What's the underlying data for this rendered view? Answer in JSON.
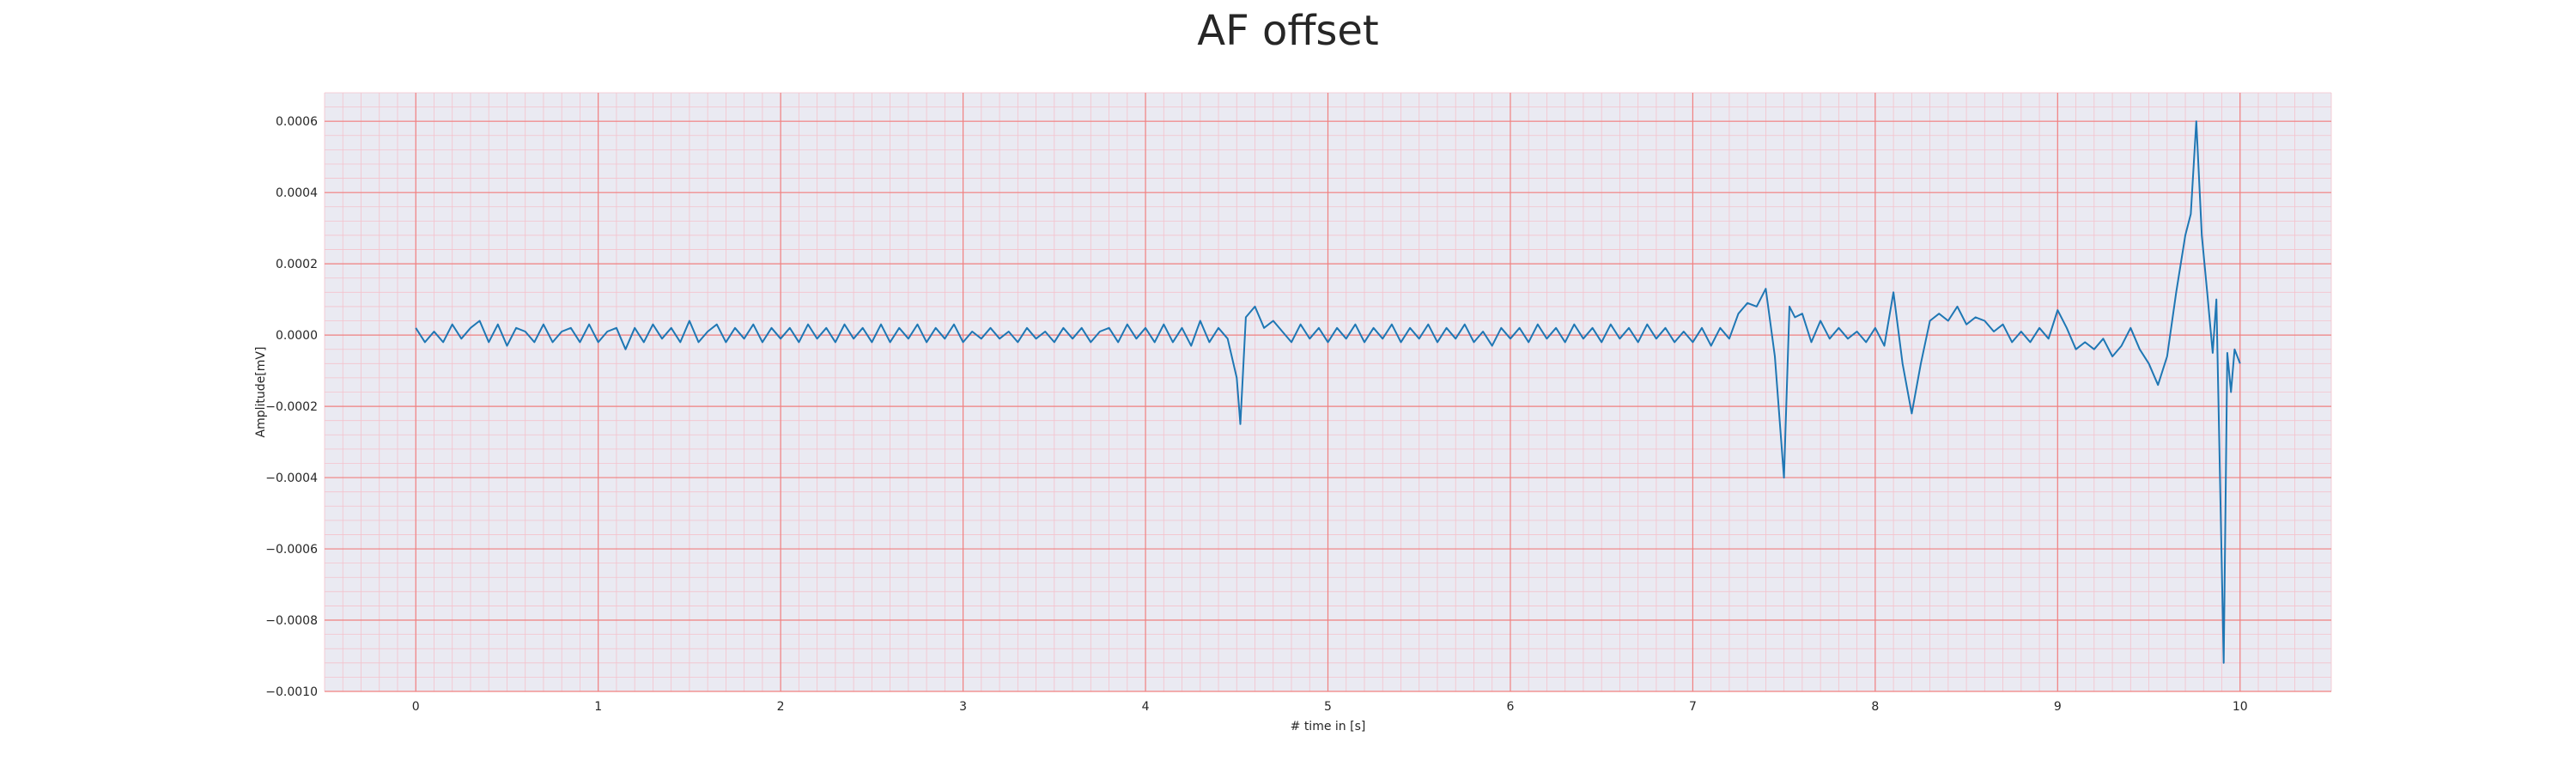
{
  "chart_data": {
    "type": "line",
    "title": "AF offset",
    "xlabel": "# time in [s]",
    "ylabel": "Amplitude[mV]",
    "xlim": [
      -0.5,
      10.5
    ],
    "ylim": [
      -0.001,
      0.00068
    ],
    "xticks": [
      0,
      1,
      2,
      3,
      4,
      5,
      6,
      7,
      8,
      9,
      10
    ],
    "xtick_labels": [
      "0",
      "1",
      "2",
      "3",
      "4",
      "5",
      "6",
      "7",
      "8",
      "9",
      "10"
    ],
    "yticks": [
      -0.001,
      -0.0008,
      -0.0006,
      -0.0004,
      -0.0002,
      0.0,
      0.0002,
      0.0004,
      0.0006
    ],
    "ytick_labels": [
      "−0.0010",
      "−0.0008",
      "−0.0006",
      "−0.0004",
      "−0.0002",
      "0.0000",
      "0.0002",
      "0.0004",
      "0.0006"
    ],
    "grid": true,
    "colors": {
      "background": "#eaeaf2",
      "major_grid": "#f08080",
      "minor_grid": "#f4c2cc",
      "line": "#1f77b4"
    },
    "series": [
      {
        "x": [
          0.0,
          0.05,
          0.1,
          0.15,
          0.2,
          0.25,
          0.3,
          0.35,
          0.4,
          0.45,
          0.5,
          0.55,
          0.6,
          0.65,
          0.7,
          0.75,
          0.8,
          0.85,
          0.9,
          0.95,
          1.0,
          1.05,
          1.1,
          1.15,
          1.2,
          1.25,
          1.3,
          1.35,
          1.4,
          1.45,
          1.5,
          1.55,
          1.6,
          1.65,
          1.7,
          1.75,
          1.8,
          1.85,
          1.9,
          1.95,
          2.0,
          2.05,
          2.1,
          2.15,
          2.2,
          2.25,
          2.3,
          2.35,
          2.4,
          2.45,
          2.5,
          2.55,
          2.6,
          2.65,
          2.7,
          2.75,
          2.8,
          2.85,
          2.9,
          2.95,
          3.0,
          3.05,
          3.1,
          3.15,
          3.2,
          3.25,
          3.3,
          3.35,
          3.4,
          3.45,
          3.5,
          3.55,
          3.6,
          3.65,
          3.7,
          3.75,
          3.8,
          3.85,
          3.9,
          3.95,
          4.0,
          4.05,
          4.1,
          4.15,
          4.2,
          4.25,
          4.3,
          4.35,
          4.4,
          4.45,
          4.5,
          4.52,
          4.55,
          4.6,
          4.65,
          4.7,
          4.75,
          4.8,
          4.85,
          4.9,
          4.95,
          5.0,
          5.05,
          5.1,
          5.15,
          5.2,
          5.25,
          5.3,
          5.35,
          5.4,
          5.45,
          5.5,
          5.55,
          5.6,
          5.65,
          5.7,
          5.75,
          5.8,
          5.85,
          5.9,
          5.95,
          6.0,
          6.05,
          6.1,
          6.15,
          6.2,
          6.25,
          6.3,
          6.35,
          6.4,
          6.45,
          6.5,
          6.55,
          6.6,
          6.65,
          6.7,
          6.75,
          6.8,
          6.85,
          6.9,
          6.95,
          7.0,
          7.05,
          7.1,
          7.15,
          7.2,
          7.25,
          7.3,
          7.35,
          7.4,
          7.45,
          7.5,
          7.53,
          7.56,
          7.6,
          7.65,
          7.7,
          7.75,
          7.8,
          7.85,
          7.9,
          7.95,
          8.0,
          8.05,
          8.1,
          8.15,
          8.2,
          8.25,
          8.3,
          8.35,
          8.4,
          8.45,
          8.5,
          8.55,
          8.6,
          8.65,
          8.7,
          8.75,
          8.8,
          8.85,
          8.9,
          8.95,
          9.0,
          9.05,
          9.1,
          9.15,
          9.2,
          9.25,
          9.3,
          9.35,
          9.4,
          9.45,
          9.5,
          9.55,
          9.6,
          9.65,
          9.7,
          9.73,
          9.76,
          9.79,
          9.82,
          9.85,
          9.87,
          9.89,
          9.91,
          9.93,
          9.95,
          9.97,
          10.0
        ],
        "y": [
          2e-05,
          -2e-05,
          1e-05,
          -2e-05,
          3e-05,
          -1e-05,
          2e-05,
          4e-05,
          -2e-05,
          3e-05,
          -3e-05,
          2e-05,
          1e-05,
          -2e-05,
          3e-05,
          -2e-05,
          1e-05,
          2e-05,
          -2e-05,
          3e-05,
          -2e-05,
          1e-05,
          2e-05,
          -4e-05,
          2e-05,
          -2e-05,
          3e-05,
          -1e-05,
          2e-05,
          -2e-05,
          4e-05,
          -2e-05,
          1e-05,
          3e-05,
          -2e-05,
          2e-05,
          -1e-05,
          3e-05,
          -2e-05,
          2e-05,
          -1e-05,
          2e-05,
          -2e-05,
          3e-05,
          -1e-05,
          2e-05,
          -2e-05,
          3e-05,
          -1e-05,
          2e-05,
          -2e-05,
          3e-05,
          -2e-05,
          2e-05,
          -1e-05,
          3e-05,
          -2e-05,
          2e-05,
          -1e-05,
          3e-05,
          -2e-05,
          1e-05,
          -1e-05,
          2e-05,
          -1e-05,
          1e-05,
          -2e-05,
          2e-05,
          -1e-05,
          1e-05,
          -2e-05,
          2e-05,
          -1e-05,
          2e-05,
          -2e-05,
          1e-05,
          2e-05,
          -2e-05,
          3e-05,
          -1e-05,
          2e-05,
          -2e-05,
          3e-05,
          -2e-05,
          2e-05,
          -3e-05,
          4e-05,
          -2e-05,
          2e-05,
          -1e-05,
          -0.00012,
          -0.00025,
          5e-05,
          8e-05,
          2e-05,
          4e-05,
          1e-05,
          -2e-05,
          3e-05,
          -1e-05,
          2e-05,
          -2e-05,
          2e-05,
          -1e-05,
          3e-05,
          -2e-05,
          2e-05,
          -1e-05,
          3e-05,
          -2e-05,
          2e-05,
          -1e-05,
          3e-05,
          -2e-05,
          2e-05,
          -1e-05,
          3e-05,
          -2e-05,
          1e-05,
          -3e-05,
          2e-05,
          -1e-05,
          2e-05,
          -2e-05,
          3e-05,
          -1e-05,
          2e-05,
          -2e-05,
          3e-05,
          -1e-05,
          2e-05,
          -2e-05,
          3e-05,
          -1e-05,
          2e-05,
          -2e-05,
          3e-05,
          -1e-05,
          2e-05,
          -2e-05,
          1e-05,
          -2e-05,
          2e-05,
          -3e-05,
          2e-05,
          -1e-05,
          6e-05,
          9e-05,
          8e-05,
          0.00013,
          -6e-05,
          -0.0004,
          8e-05,
          5e-05,
          6e-05,
          -2e-05,
          4e-05,
          -1e-05,
          2e-05,
          -1e-05,
          1e-05,
          -2e-05,
          2e-05,
          -3e-05,
          0.00012,
          -8e-05,
          -0.00022,
          -8e-05,
          4e-05,
          6e-05,
          4e-05,
          8e-05,
          3e-05,
          5e-05,
          4e-05,
          1e-05,
          3e-05,
          -2e-05,
          1e-05,
          -2e-05,
          2e-05,
          -1e-05,
          7e-05,
          2e-05,
          -4e-05,
          -2e-05,
          -4e-05,
          -1e-05,
          -6e-05,
          -3e-05,
          2e-05,
          -4e-05,
          -8e-05,
          -0.00014,
          -6e-05,
          0.00012,
          0.00028,
          0.00034,
          0.0006,
          0.00028,
          0.00012,
          -5e-05,
          0.0001,
          -0.0004,
          -0.00092,
          -5e-05,
          -0.00016,
          -4e-05,
          -8e-05
        ]
      }
    ]
  }
}
